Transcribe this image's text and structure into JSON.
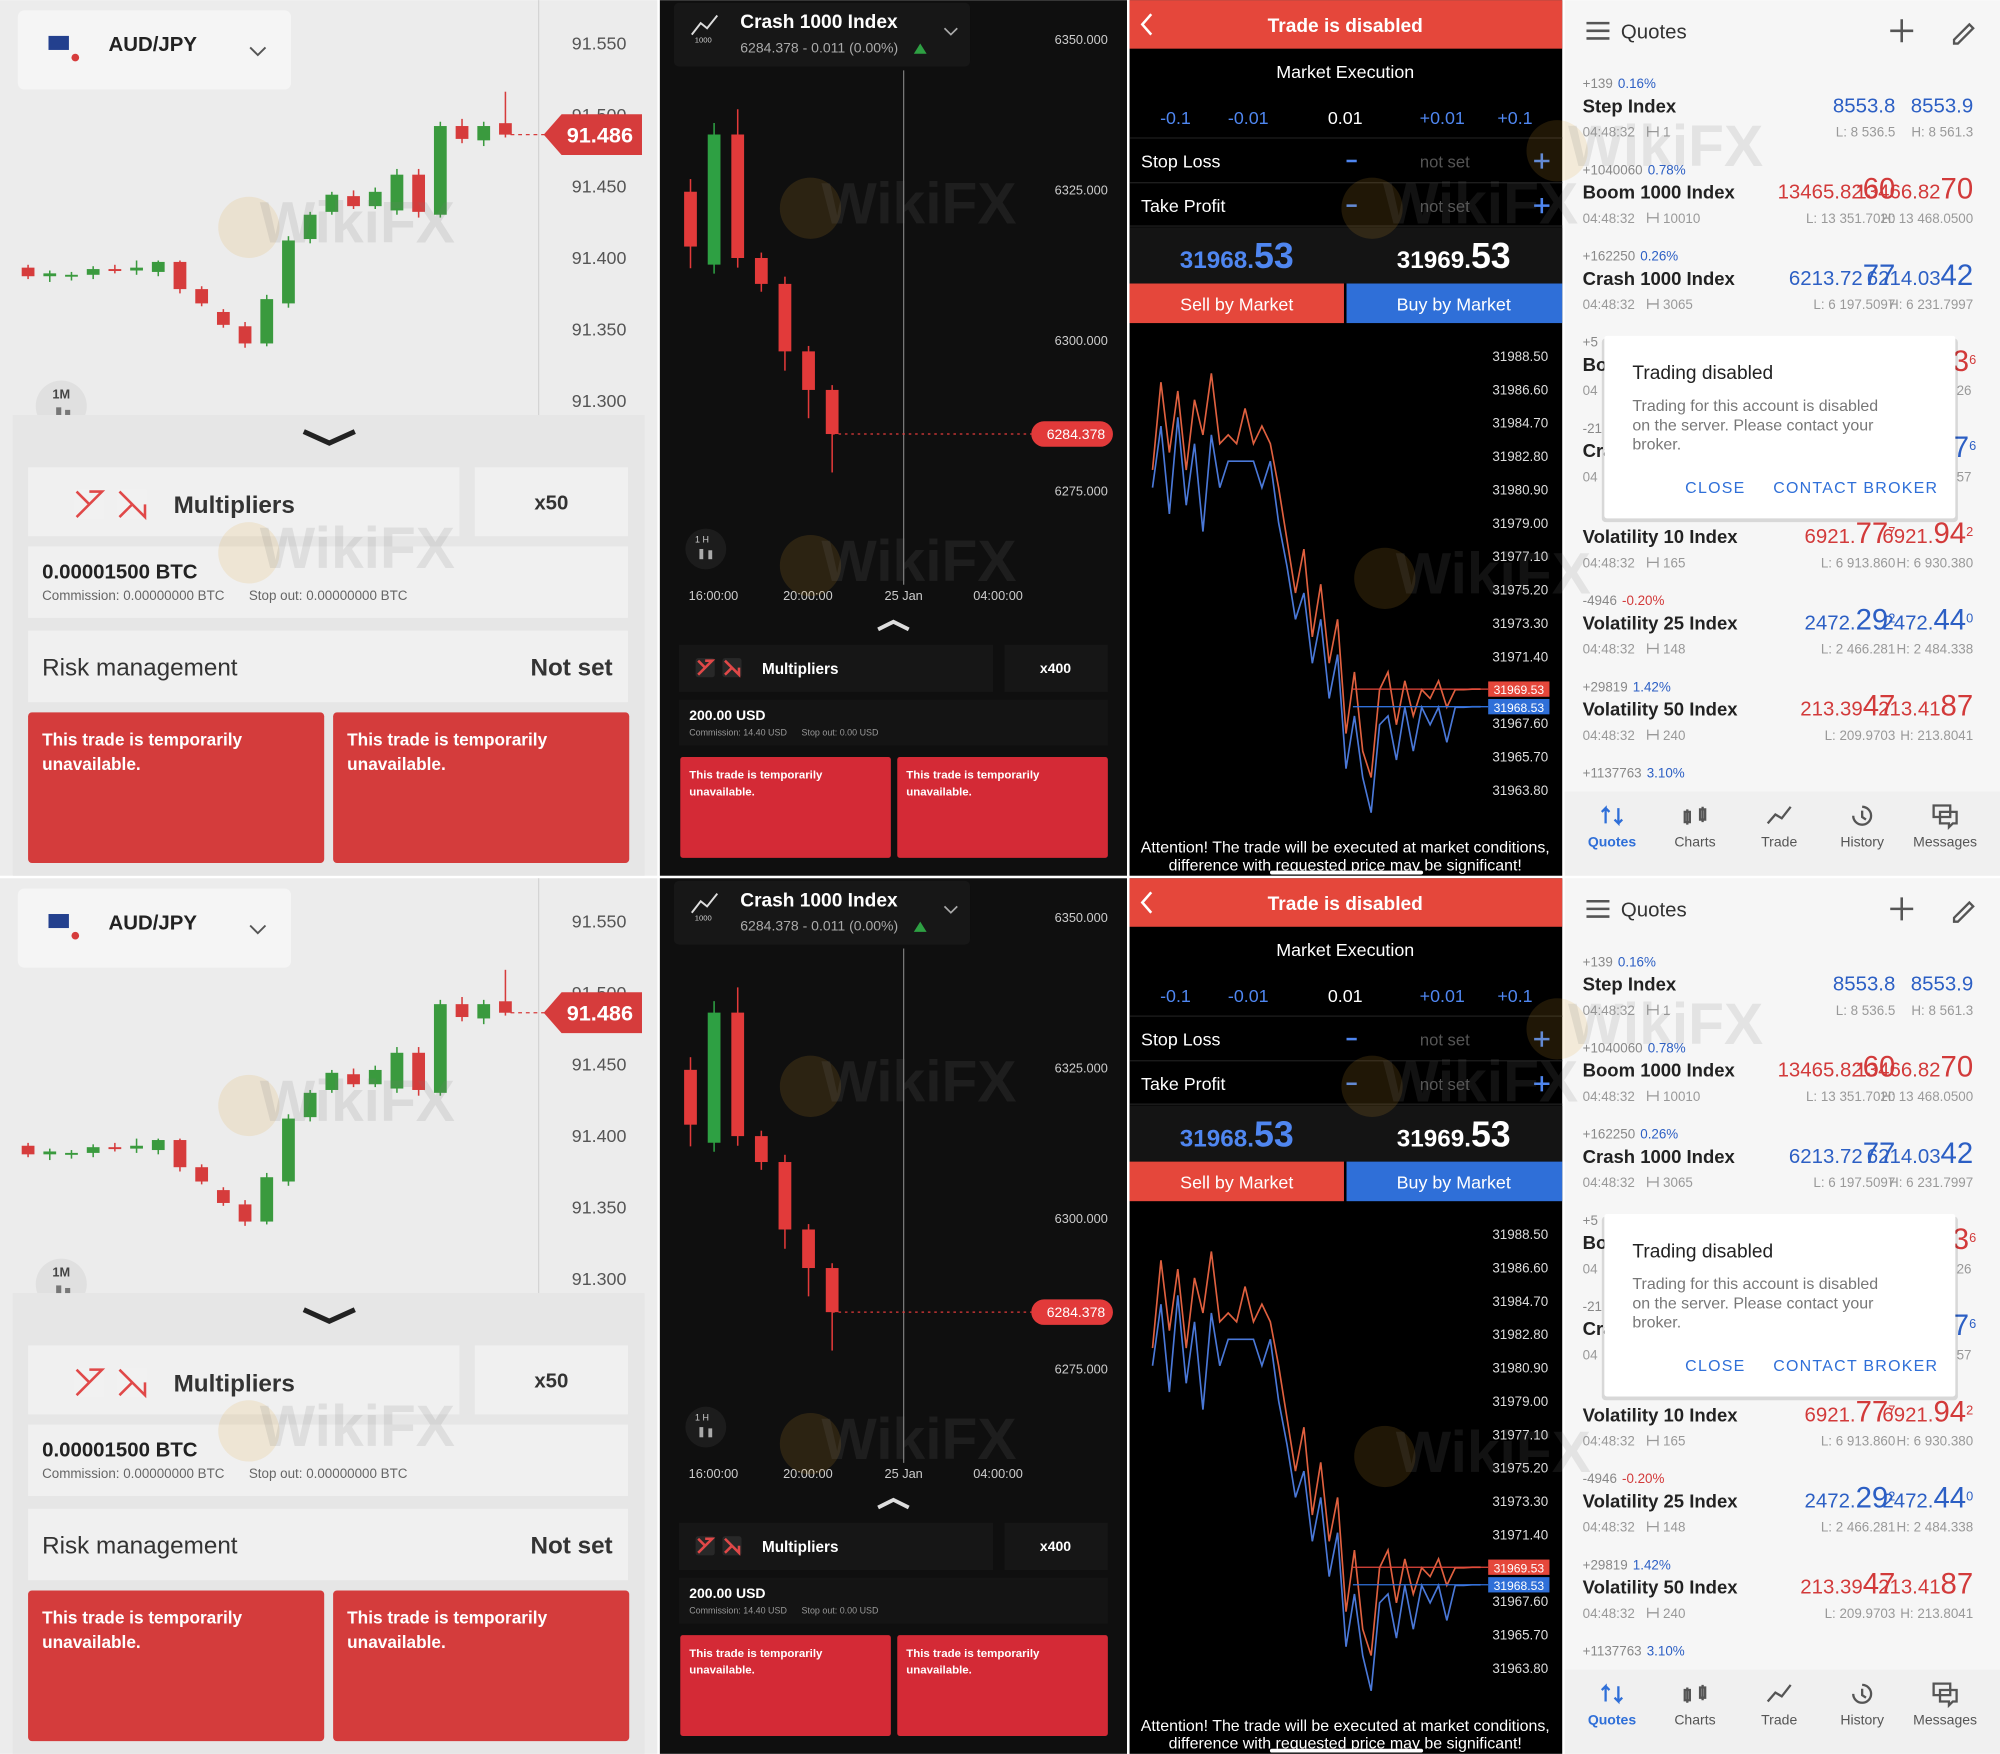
{
  "watermark": "WikiFX",
  "deriv_forex": {
    "symbol": "AUD/JPY",
    "timeframe": "1M",
    "last_price": 91.486,
    "ylim": [
      91.29,
      91.58
    ],
    "yticks": [
      {
        "value": 91.55,
        "label": "91.550"
      },
      {
        "value": 91.5,
        "label": "91.500"
      },
      {
        "value": 91.45,
        "label": "91.450"
      },
      {
        "value": 91.4,
        "label": "91.400"
      },
      {
        "value": 91.35,
        "label": "91.350"
      },
      {
        "value": 91.3,
        "label": "91.300"
      }
    ],
    "up_color": "#3a9a3e",
    "down_color": "#d63c3c",
    "candles": [
      [
        91.393,
        91.395,
        91.385,
        91.387
      ],
      [
        91.387,
        91.391,
        91.383,
        91.389
      ],
      [
        91.388,
        91.39,
        91.384,
        91.388
      ],
      [
        91.388,
        91.394,
        91.385,
        91.392
      ],
      [
        91.392,
        91.395,
        91.389,
        91.391
      ],
      [
        91.391,
        91.398,
        91.388,
        91.393
      ],
      [
        91.39,
        91.398,
        91.387,
        91.397
      ],
      [
        91.397,
        91.398,
        91.375,
        91.378
      ],
      [
        91.378,
        91.38,
        91.366,
        91.368
      ],
      [
        91.362,
        91.364,
        91.351,
        91.353
      ],
      [
        91.352,
        91.355,
        91.337,
        91.34
      ],
      [
        91.34,
        91.374,
        91.338,
        91.371
      ],
      [
        91.368,
        91.415,
        91.365,
        91.412
      ],
      [
        91.413,
        91.432,
        91.41,
        91.43
      ],
      [
        91.432,
        91.446,
        91.43,
        91.444
      ],
      [
        91.443,
        91.447,
        91.434,
        91.436
      ],
      [
        91.436,
        91.449,
        91.434,
        91.446
      ],
      [
        91.433,
        91.462,
        91.43,
        91.458
      ],
      [
        91.458,
        91.462,
        91.428,
        91.432
      ],
      [
        91.43,
        91.495,
        91.428,
        91.492
      ],
      [
        91.492,
        91.497,
        91.48,
        91.483
      ],
      [
        91.482,
        91.495,
        91.478,
        91.492
      ],
      [
        91.494,
        91.516,
        91.484,
        91.486
      ]
    ],
    "trade_type": "Multipliers",
    "multiplier": "x50",
    "stake": "0.00001500 BTC",
    "commission": "Commission: 0.00000000 BTC",
    "stop_out": "Stop out: 0.00000000 BTC",
    "risk_label": "Risk management",
    "risk_value": "Not set",
    "buttons": [
      "This trade is temporarily unavailable.",
      "This trade is temporarily unavailable."
    ]
  },
  "deriv_crash": {
    "symbol": "Crash 1000 Index",
    "icon_label": "1000",
    "quote": "6284.378 - 0.011 (0.00%)",
    "timeframe": "1 H",
    "last_price": 6284.378,
    "ylim": [
      6260,
      6356.4
    ],
    "yticks": [
      {
        "value": 6350,
        "label": "6350.000"
      },
      {
        "value": 6325,
        "label": "6325.000"
      },
      {
        "value": 6300,
        "label": "6300.000"
      },
      {
        "value": 6275,
        "label": "6275.000"
      }
    ],
    "time_labels": [
      "16:00:00",
      "20:00:00",
      "25 Jan",
      "04:00:00"
    ],
    "up_color": "#2ea043",
    "down_color": "#e23a3a",
    "candles": [
      [
        6324.6,
        6326.7,
        6311.9,
        6315.5
      ],
      [
        6312.5,
        6336.0,
        6311.0,
        6334.1
      ],
      [
        6334.1,
        6338.3,
        6312.0,
        6313.6
      ],
      [
        6313.6,
        6314.5,
        6308.0,
        6309.3
      ],
      [
        6309.3,
        6310.5,
        6294.9,
        6298.1
      ],
      [
        6298.1,
        6299.0,
        6287.0,
        6291.7
      ],
      [
        6291.7,
        6292.5,
        6278.0,
        6284.378
      ]
    ],
    "trade_type": "Multipliers",
    "multiplier": "x400",
    "stake": "200.00 USD",
    "commission": "Commission: 14.40 USD",
    "stop_out": "Stop out: 0.00 USD",
    "buttons": [
      "This trade is temporarily unavailable.",
      "This trade is temporarily unavailable."
    ]
  },
  "mt_trade": {
    "title": "Trade is disabled",
    "mode": "Market Execution",
    "steps": [
      "-0.1",
      "-0.01",
      "0.01",
      "+0.01",
      "+0.1"
    ],
    "stop_loss": "Stop Loss",
    "take_profit": "Take Profit",
    "not_set": "not set",
    "bid": [
      "31968.",
      "53"
    ],
    "ask": [
      "31969.",
      "53"
    ],
    "sell": "Sell by Market",
    "buy": "Buy by Market",
    "ylim": [
      31962.25,
      31990
    ],
    "yticks": [
      {
        "value": 31988.5,
        "label": "31988.50"
      },
      {
        "value": 31986.6,
        "label": "31986.60"
      },
      {
        "value": 31984.7,
        "label": "31984.70"
      },
      {
        "value": 31982.8,
        "label": "31982.80"
      },
      {
        "value": 31980.9,
        "label": "31980.90"
      },
      {
        "value": 31979,
        "label": "31979.00"
      },
      {
        "value": 31977.1,
        "label": "31977.10"
      },
      {
        "value": 31975.2,
        "label": "31975.20"
      },
      {
        "value": 31973.3,
        "label": "31973.30"
      },
      {
        "value": 31971.4,
        "label": "31971.40"
      },
      {
        "value": 31967.6,
        "label": "31967.60"
      },
      {
        "value": 31965.7,
        "label": "31965.70"
      },
      {
        "value": 31963.8,
        "label": "31963.80"
      }
    ],
    "ask_price": 31969.53,
    "bid_price": 31968.53,
    "series": [
      {
        "color": "#e0603f",
        "values": [
          31982.0,
          31987.0,
          31983.0,
          31986.5,
          31982.0,
          31986.0,
          31984.0,
          31987.5,
          31983.5,
          31984.0,
          31983.5,
          31985.5,
          31983.5,
          31984.5,
          31983.5,
          31981.0,
          31978.0,
          31975.0,
          31977.5,
          31972.5,
          31975.5,
          31971.0,
          31973.5,
          31967.0,
          31970.5,
          31966.0,
          31964.5,
          31969.5,
          31970.5,
          31967.5,
          31970.0,
          31968.0,
          31969.5,
          31969.0,
          31970.0,
          31968.5,
          31969.5,
          31969.5,
          31969.53,
          31969.53
        ]
      },
      {
        "color": "#4a78d8",
        "values": [
          31981.0,
          31984.5,
          31979.5,
          31985.0,
          31980.0,
          31983.5,
          31978.5,
          31984.0,
          31981.0,
          31982.5,
          31982.5,
          31982.5,
          31982.5,
          31981.0,
          31982.5,
          31979.0,
          31976.5,
          31973.5,
          31975.0,
          31971.0,
          31973.5,
          31969.0,
          31971.5,
          31965.0,
          31968.0,
          31964.5,
          31962.5,
          31967.5,
          31968.0,
          31965.5,
          31968.5,
          31966.0,
          31968.5,
          31967.5,
          31968.5,
          31966.5,
          31968.5,
          31968.5,
          31968.53,
          31968.53
        ]
      }
    ],
    "notice": "Attention! The trade will be executed at market conditions, difference with requested price may be significant!"
  },
  "mt_quotes": {
    "title": "Quotes",
    "quotes": [
      {
        "change": "+139",
        "percent": "0.16%",
        "percent_color": "#2c5fc4",
        "name": "Step Index",
        "time": "04:48:32",
        "ticks": "1",
        "bid": [
          "8553.8"
        ],
        "ask": [
          "8553.9"
        ],
        "color": "#2c5fc4",
        "low": "L: 8 536.5",
        "high": "H: 8 561.3"
      },
      {
        "change": "+1040060",
        "percent": "0.78%",
        "percent_color": "#2c5fc4",
        "name": "Boom 1000 Index",
        "time": "04:48:32",
        "ticks": "10010",
        "bid": [
          "13465.82",
          "60"
        ],
        "ask": [
          "13466.82",
          "70"
        ],
        "color": "#d23a3a",
        "low": "L: 13 351.7020",
        "high": "H: 13 468.0500"
      },
      {
        "change": "+162250",
        "percent": "0.26%",
        "percent_color": "#2c5fc4",
        "name": "Crash 1000 Index",
        "time": "04:48:32",
        "ticks": "3065",
        "bid": [
          "6213.72",
          "77"
        ],
        "ask": [
          "6214.03",
          "42"
        ],
        "color": "#2c5fc4",
        "low": "L: 6 197.5097",
        "high": "H: 6 231.7997"
      },
      {
        "change": "+5",
        "name": "Bo",
        "time": "04",
        "edge": "3",
        "edge_sup": "6",
        "edge_low": "26",
        "color": "#d23a3a"
      },
      {
        "change": "-21",
        "name": "Cra",
        "time": "04",
        "edge": "7",
        "edge_sup": "6",
        "edge_low": "57",
        "color": "#2c5fc4"
      },
      {
        "name": "Volatility 10 Index",
        "time": "04:48:32",
        "ticks": "165",
        "bid": [
          "6921.",
          "77",
          "7"
        ],
        "ask": [
          "6921.",
          "94",
          "2"
        ],
        "color": "#d23a3a",
        "low": "L: 6 913.860",
        "high": "H: 6 930.380"
      },
      {
        "change": "-4946",
        "percent": "-0.20%",
        "percent_color": "#d23a3a",
        "name": "Volatility 25 Index",
        "time": "04:48:32",
        "ticks": "148",
        "bid": [
          "2472.",
          "29",
          "2"
        ],
        "ask": [
          "2472.",
          "44",
          "0"
        ],
        "color": "#2c5fc4",
        "low": "L: 2 466.281",
        "high": "H: 2 484.338"
      },
      {
        "change": "+29819",
        "percent": "1.42%",
        "percent_color": "#2c5fc4",
        "name": "Volatility 50 Index",
        "time": "04:48:32",
        "ticks": "240",
        "bid": [
          "213.39",
          "47"
        ],
        "ask": [
          "213.41",
          "87"
        ],
        "color": "#d23a3a",
        "low": "L: 209.9703",
        "high": "H: 213.8041"
      },
      {
        "change": "+1137763",
        "percent": "3.10%",
        "percent_color": "#2c5fc4"
      }
    ],
    "dialog": {
      "title": "Trading disabled",
      "text": "Trading for this account is disabled on the server. Please contact your broker.",
      "close": "CLOSE",
      "contact": "CONTACT BROKER"
    },
    "nav": [
      "Quotes",
      "Charts",
      "Trade",
      "History",
      "Messages"
    ]
  }
}
